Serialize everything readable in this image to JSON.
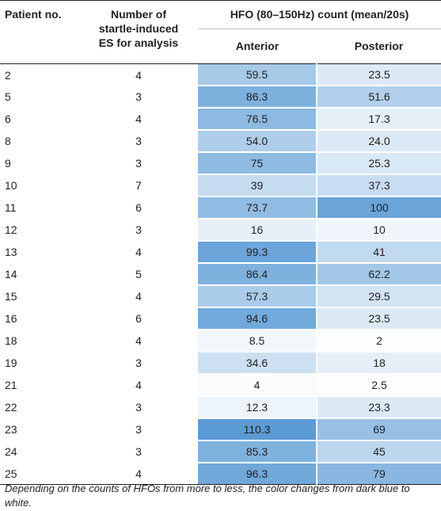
{
  "table": {
    "headers": {
      "patient": "Patient no.",
      "es_line1": "Number of",
      "es_line2": "startle-induced",
      "es_line3": "ES for analysis",
      "hfo": "HFO (80–150Hz) count (mean/20s)",
      "anterior": "Anterior",
      "posterior": "Posterior"
    },
    "color_scale": {
      "dark": "#5b9bd5",
      "light": "#ffffff"
    },
    "rows": [
      {
        "patient": "2",
        "es": "4",
        "anterior": "59.5",
        "posterior": "23.5"
      },
      {
        "patient": "5",
        "es": "3",
        "anterior": "86.3",
        "posterior": "51.6"
      },
      {
        "patient": "6",
        "es": "4",
        "anterior": "76.5",
        "posterior": "17.3"
      },
      {
        "patient": "8",
        "es": "3",
        "anterior": "54.0",
        "posterior": "24.0"
      },
      {
        "patient": "9",
        "es": "3",
        "anterior": "75",
        "posterior": "25.3"
      },
      {
        "patient": "10",
        "es": "7",
        "anterior": "39",
        "posterior": "37.3"
      },
      {
        "patient": "11",
        "es": "6",
        "anterior": "73.7",
        "posterior": "100"
      },
      {
        "patient": "12",
        "es": "3",
        "anterior": "16",
        "posterior": "10"
      },
      {
        "patient": "13",
        "es": "4",
        "anterior": "99.3",
        "posterior": "41"
      },
      {
        "patient": "14",
        "es": "5",
        "anterior": "86.4",
        "posterior": "62.2"
      },
      {
        "patient": "15",
        "es": "4",
        "anterior": "57.3",
        "posterior": "29.5"
      },
      {
        "patient": "16",
        "es": "6",
        "anterior": "94.6",
        "posterior": "23.5"
      },
      {
        "patient": "18",
        "es": "4",
        "anterior": "8.5",
        "posterior": "2"
      },
      {
        "patient": "19",
        "es": "3",
        "anterior": "34.6",
        "posterior": "18"
      },
      {
        "patient": "21",
        "es": "4",
        "anterior": "4",
        "posterior": "2.5"
      },
      {
        "patient": "22",
        "es": "3",
        "anterior": "12.3",
        "posterior": "23.3"
      },
      {
        "patient": "23",
        "es": "3",
        "anterior": "110.3",
        "posterior": "69"
      },
      {
        "patient": "24",
        "es": "3",
        "anterior": "85.3",
        "posterior": "45"
      },
      {
        "patient": "25",
        "es": "4",
        "anterior": "96.3",
        "posterior": "79"
      }
    ]
  },
  "footnote": "Depending on the counts of HFOs from more to less, the color changes from dark blue to white."
}
